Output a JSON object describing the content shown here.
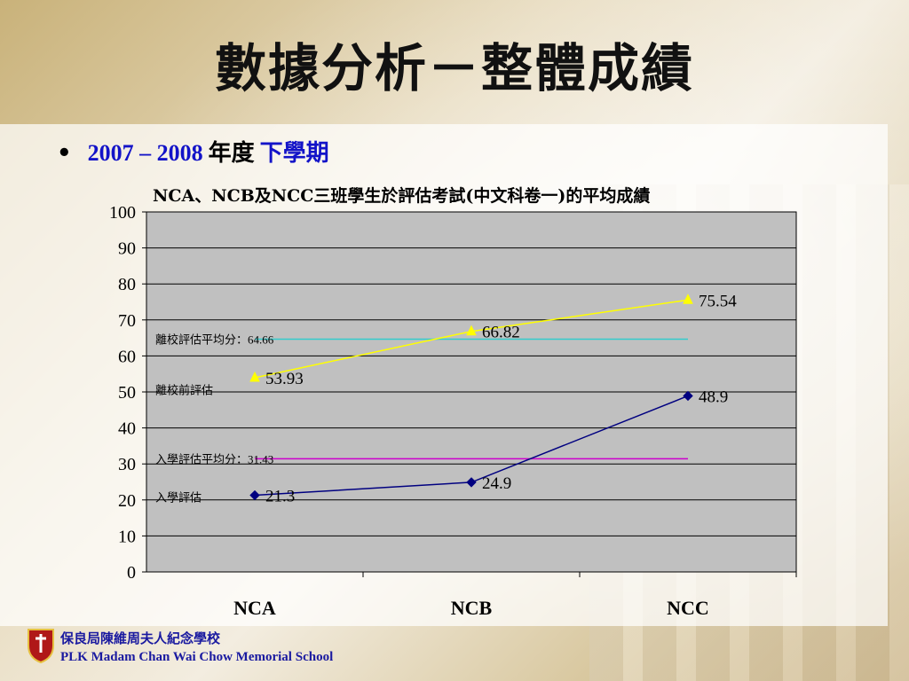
{
  "slide": {
    "title": "數據分析－整體成績",
    "bullet": "•",
    "year": "2007 – 2008",
    "year_suffix": "年度",
    "term": "下學期"
  },
  "chart_data": {
    "type": "line",
    "title": "NCA、NCB及NCC三班學生於評估考試(中文科卷一)的平均成績",
    "categories": [
      "NCA",
      "NCB",
      "NCC"
    ],
    "ylim": [
      0,
      100
    ],
    "yticks": [
      0,
      10,
      20,
      30,
      40,
      50,
      60,
      70,
      80,
      90,
      100
    ],
    "grid": true,
    "series": [
      {
        "name": "離校前評估",
        "values": [
          53.93,
          66.82,
          75.54
        ],
        "labels": [
          "53.93",
          "66.82",
          "75.54"
        ],
        "color": "#ffff00",
        "marker": "triangle"
      },
      {
        "name": "入學評估",
        "values": [
          21.3,
          24.9,
          48.9
        ],
        "labels": [
          "21.3",
          "24.9",
          "48.9"
        ],
        "color": "#000080",
        "marker": "diamond"
      }
    ],
    "reference_lines": [
      {
        "label": "離校評估平均分：",
        "value_label": "64.66",
        "value": 64.66,
        "color": "#33cccc"
      },
      {
        "label": "入學評估平均分：",
        "value_label": "31.43",
        "value": 31.43,
        "color": "#cc00cc"
      }
    ],
    "plot_background": "#c0c0c0"
  },
  "footer": {
    "school_zh": "保良局陳維周夫人紀念學校",
    "school_en": "PLK Madam Chan Wai Chow Memorial School"
  }
}
